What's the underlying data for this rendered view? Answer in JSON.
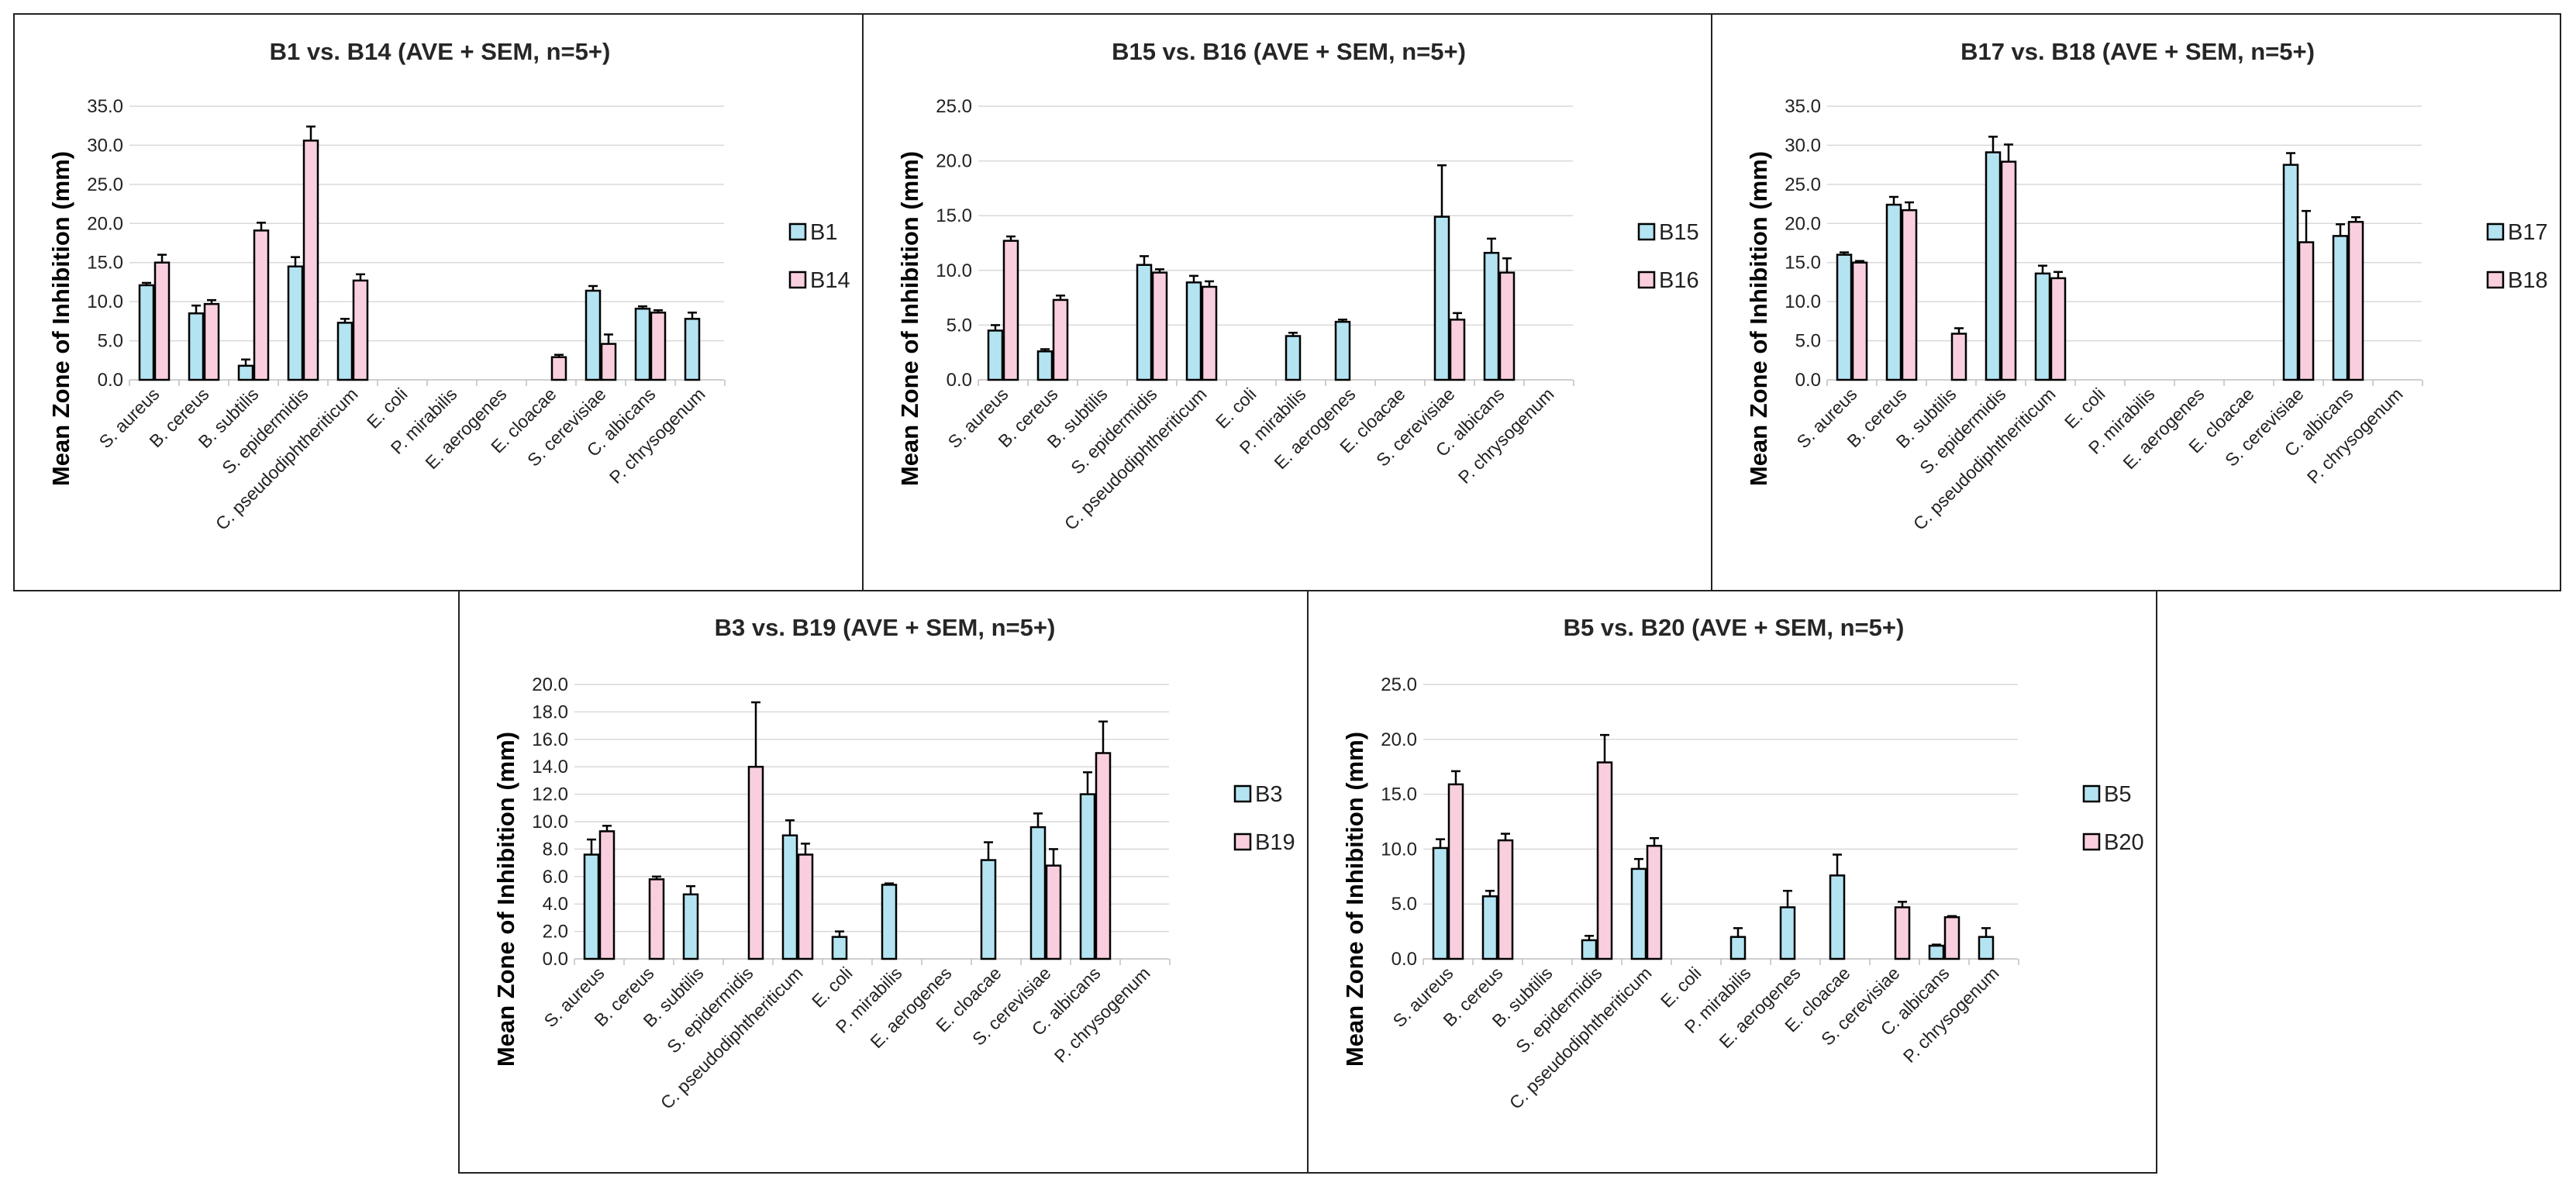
{
  "chart_data": [
    {
      "type": "bar",
      "title": "B1 vs. B14 (AVE + SEM, n=5+)",
      "ylabel": "Mean Zone of Inhibition (mm)",
      "xlabel": "",
      "ylim": [
        0,
        35
      ],
      "yticks": [
        "0.0",
        "5.0",
        "10.0",
        "15.0",
        "20.0",
        "25.0",
        "30.0",
        "35.0"
      ],
      "categories": [
        "S. aureus",
        "B. cereus",
        "B. subtilis",
        "S. epidermidis",
        "C. pseudodiphtheriticum",
        "E. coli",
        "P. mirabilis",
        "E. aerogenes",
        "E. cloacae",
        "S. cerevisiae",
        "C. albicans",
        "P. chrysogenum"
      ],
      "legend_position": "right",
      "series": [
        {
          "name": "B1",
          "color": "#b4e4f2",
          "values": [
            12.1,
            8.5,
            1.8,
            14.5,
            7.3,
            0,
            0,
            0,
            0,
            11.4,
            9.1,
            7.8
          ],
          "errors": [
            0.3,
            1.0,
            0.8,
            1.2,
            0.5,
            0,
            0,
            0,
            0,
            0.6,
            0.3,
            0.8
          ]
        },
        {
          "name": "B14",
          "color": "#f9cfe0",
          "values": [
            15.0,
            9.7,
            19.1,
            30.6,
            12.7,
            0,
            0,
            0,
            2.9,
            4.6,
            8.6,
            0
          ],
          "errors": [
            1.0,
            0.5,
            1.0,
            1.8,
            0.8,
            0,
            0,
            0,
            0.3,
            1.2,
            0.3,
            0
          ]
        }
      ]
    },
    {
      "type": "bar",
      "title": "B15 vs. B16 (AVE + SEM, n=5+)",
      "ylabel": "Mean Zone of Inhibition (mm)",
      "xlabel": "",
      "ylim": [
        0,
        25
      ],
      "yticks": [
        "0.0",
        "5.0",
        "10.0",
        "15.0",
        "20.0",
        "25.0"
      ],
      "categories": [
        "S. aureus",
        "B. cereus",
        "B. subtilis",
        "S. epidermidis",
        "C. pseudodiphtheriticum",
        "E. coli",
        "P. mirabilis",
        "E. aerogenes",
        "E. cloacae",
        "S. cerevisiae",
        "C. albicans",
        "P. chrysogenum"
      ],
      "legend_position": "right",
      "series": [
        {
          "name": "B15",
          "color": "#b4e4f2",
          "values": [
            4.5,
            2.6,
            0,
            10.5,
            8.9,
            0,
            4.0,
            5.3,
            0,
            14.9,
            11.6,
            0
          ],
          "errors": [
            0.5,
            0.2,
            0,
            0.8,
            0.6,
            0,
            0.3,
            0.2,
            0,
            4.7,
            1.3,
            0
          ]
        },
        {
          "name": "B16",
          "color": "#f9cfe0",
          "values": [
            12.7,
            7.3,
            0,
            9.8,
            8.5,
            0,
            0,
            0,
            0,
            5.5,
            9.8,
            0
          ],
          "errors": [
            0.4,
            0.4,
            0,
            0.3,
            0.5,
            0,
            0,
            0,
            0,
            0.6,
            1.3,
            0
          ]
        }
      ]
    },
    {
      "type": "bar",
      "title": "B17 vs. B18 (AVE + SEM, n=5+)",
      "ylabel": "Mean Zone of Inhibition (mm)",
      "xlabel": "",
      "ylim": [
        0,
        35
      ],
      "yticks": [
        "0.0",
        "5.0",
        "10.0",
        "15.0",
        "20.0",
        "25.0",
        "30.0",
        "35.0"
      ],
      "categories": [
        "S. aureus",
        "B. cereus",
        "B. subtilis",
        "S. epidermidis",
        "C. pseudodiphtheriticum",
        "E. coli",
        "P. mirabilis",
        "E. aerogenes",
        "E. cloacae",
        "S. cerevisiae",
        "C. albicans",
        "P. chrysogenum"
      ],
      "legend_position": "right",
      "series": [
        {
          "name": "B17",
          "color": "#b4e4f2",
          "values": [
            16.0,
            22.4,
            0,
            29.1,
            13.6,
            0,
            0,
            0,
            0,
            27.5,
            18.4,
            0
          ],
          "errors": [
            0.3,
            1.0,
            0,
            2.0,
            1.0,
            0,
            0,
            0,
            0,
            1.5,
            1.5,
            0
          ]
        },
        {
          "name": "B18",
          "color": "#f9cfe0",
          "values": [
            15.0,
            21.7,
            5.9,
            27.9,
            13.0,
            0,
            0,
            0,
            0,
            17.6,
            20.2,
            0
          ],
          "errors": [
            0.2,
            1.0,
            0.7,
            2.2,
            0.8,
            0,
            0,
            0,
            0,
            4.0,
            0.6,
            0
          ]
        }
      ]
    },
    {
      "type": "bar",
      "title": "B3 vs. B19 (AVE + SEM, n=5+)",
      "ylabel": "Mean Zone of Inhibition (mm)",
      "xlabel": "",
      "ylim": [
        0,
        20
      ],
      "yticks": [
        "0.0",
        "2.0",
        "4.0",
        "6.0",
        "8.0",
        "10.0",
        "12.0",
        "14.0",
        "16.0",
        "18.0",
        "20.0"
      ],
      "categories": [
        "S. aureus",
        "B. cereus",
        "B. subtilis",
        "S. epidermidis",
        "C. pseudodiphtheriticum",
        "E. coli",
        "P. mirabilis",
        "E. aerogenes",
        "E. cloacae",
        "S. cerevisiae",
        "C. albicans",
        "P. chrysogenum"
      ],
      "legend_position": "right",
      "series": [
        {
          "name": "B3",
          "color": "#b4e4f2",
          "values": [
            7.6,
            0,
            4.7,
            0,
            9.0,
            1.6,
            5.4,
            0,
            7.2,
            9.6,
            12.0,
            0
          ],
          "errors": [
            1.1,
            0,
            0.6,
            0,
            1.1,
            0.4,
            0.1,
            0,
            1.3,
            1.0,
            1.6,
            0
          ]
        },
        {
          "name": "B19",
          "color": "#f9cfe0",
          "values": [
            9.3,
            5.8,
            0,
            14.0,
            7.6,
            0,
            0,
            0,
            0,
            6.8,
            15.0,
            0
          ],
          "errors": [
            0.4,
            0.2,
            0,
            4.7,
            0.8,
            0,
            0,
            0,
            0,
            1.2,
            2.3,
            0
          ]
        }
      ]
    },
    {
      "type": "bar",
      "title": "B5 vs. B20 (AVE + SEM, n=5+)",
      "ylabel": "Mean Zone of Inhibition (mm)",
      "xlabel": "",
      "ylim": [
        0,
        25
      ],
      "yticks": [
        "0.0",
        "5.0",
        "10.0",
        "15.0",
        "20.0",
        "25.0"
      ],
      "categories": [
        "S. aureus",
        "B. cereus",
        "B. subtilis",
        "S. epidermidis",
        "C. pseudodiphtheriticum",
        "E. coli",
        "P. mirabilis",
        "E. aerogenes",
        "E. cloacae",
        "S. cerevisiae",
        "C. albicans",
        "P. chrysogenum"
      ],
      "legend_position": "right",
      "series": [
        {
          "name": "B5",
          "color": "#b4e4f2",
          "values": [
            10.1,
            5.7,
            0,
            1.7,
            8.2,
            0,
            2.0,
            4.7,
            7.6,
            0,
            1.2,
            2.0
          ],
          "errors": [
            0.8,
            0.5,
            0,
            0.4,
            0.9,
            0,
            0.8,
            1.5,
            1.9,
            0,
            0.1,
            0.8
          ]
        },
        {
          "name": "B20",
          "color": "#f9cfe0",
          "values": [
            15.9,
            10.8,
            0,
            17.9,
            10.3,
            0,
            0,
            0,
            0,
            4.7,
            3.8,
            0
          ],
          "errors": [
            1.2,
            0.6,
            0,
            2.5,
            0.7,
            0,
            0,
            0,
            0,
            0.5,
            0.1,
            0
          ]
        }
      ]
    }
  ]
}
